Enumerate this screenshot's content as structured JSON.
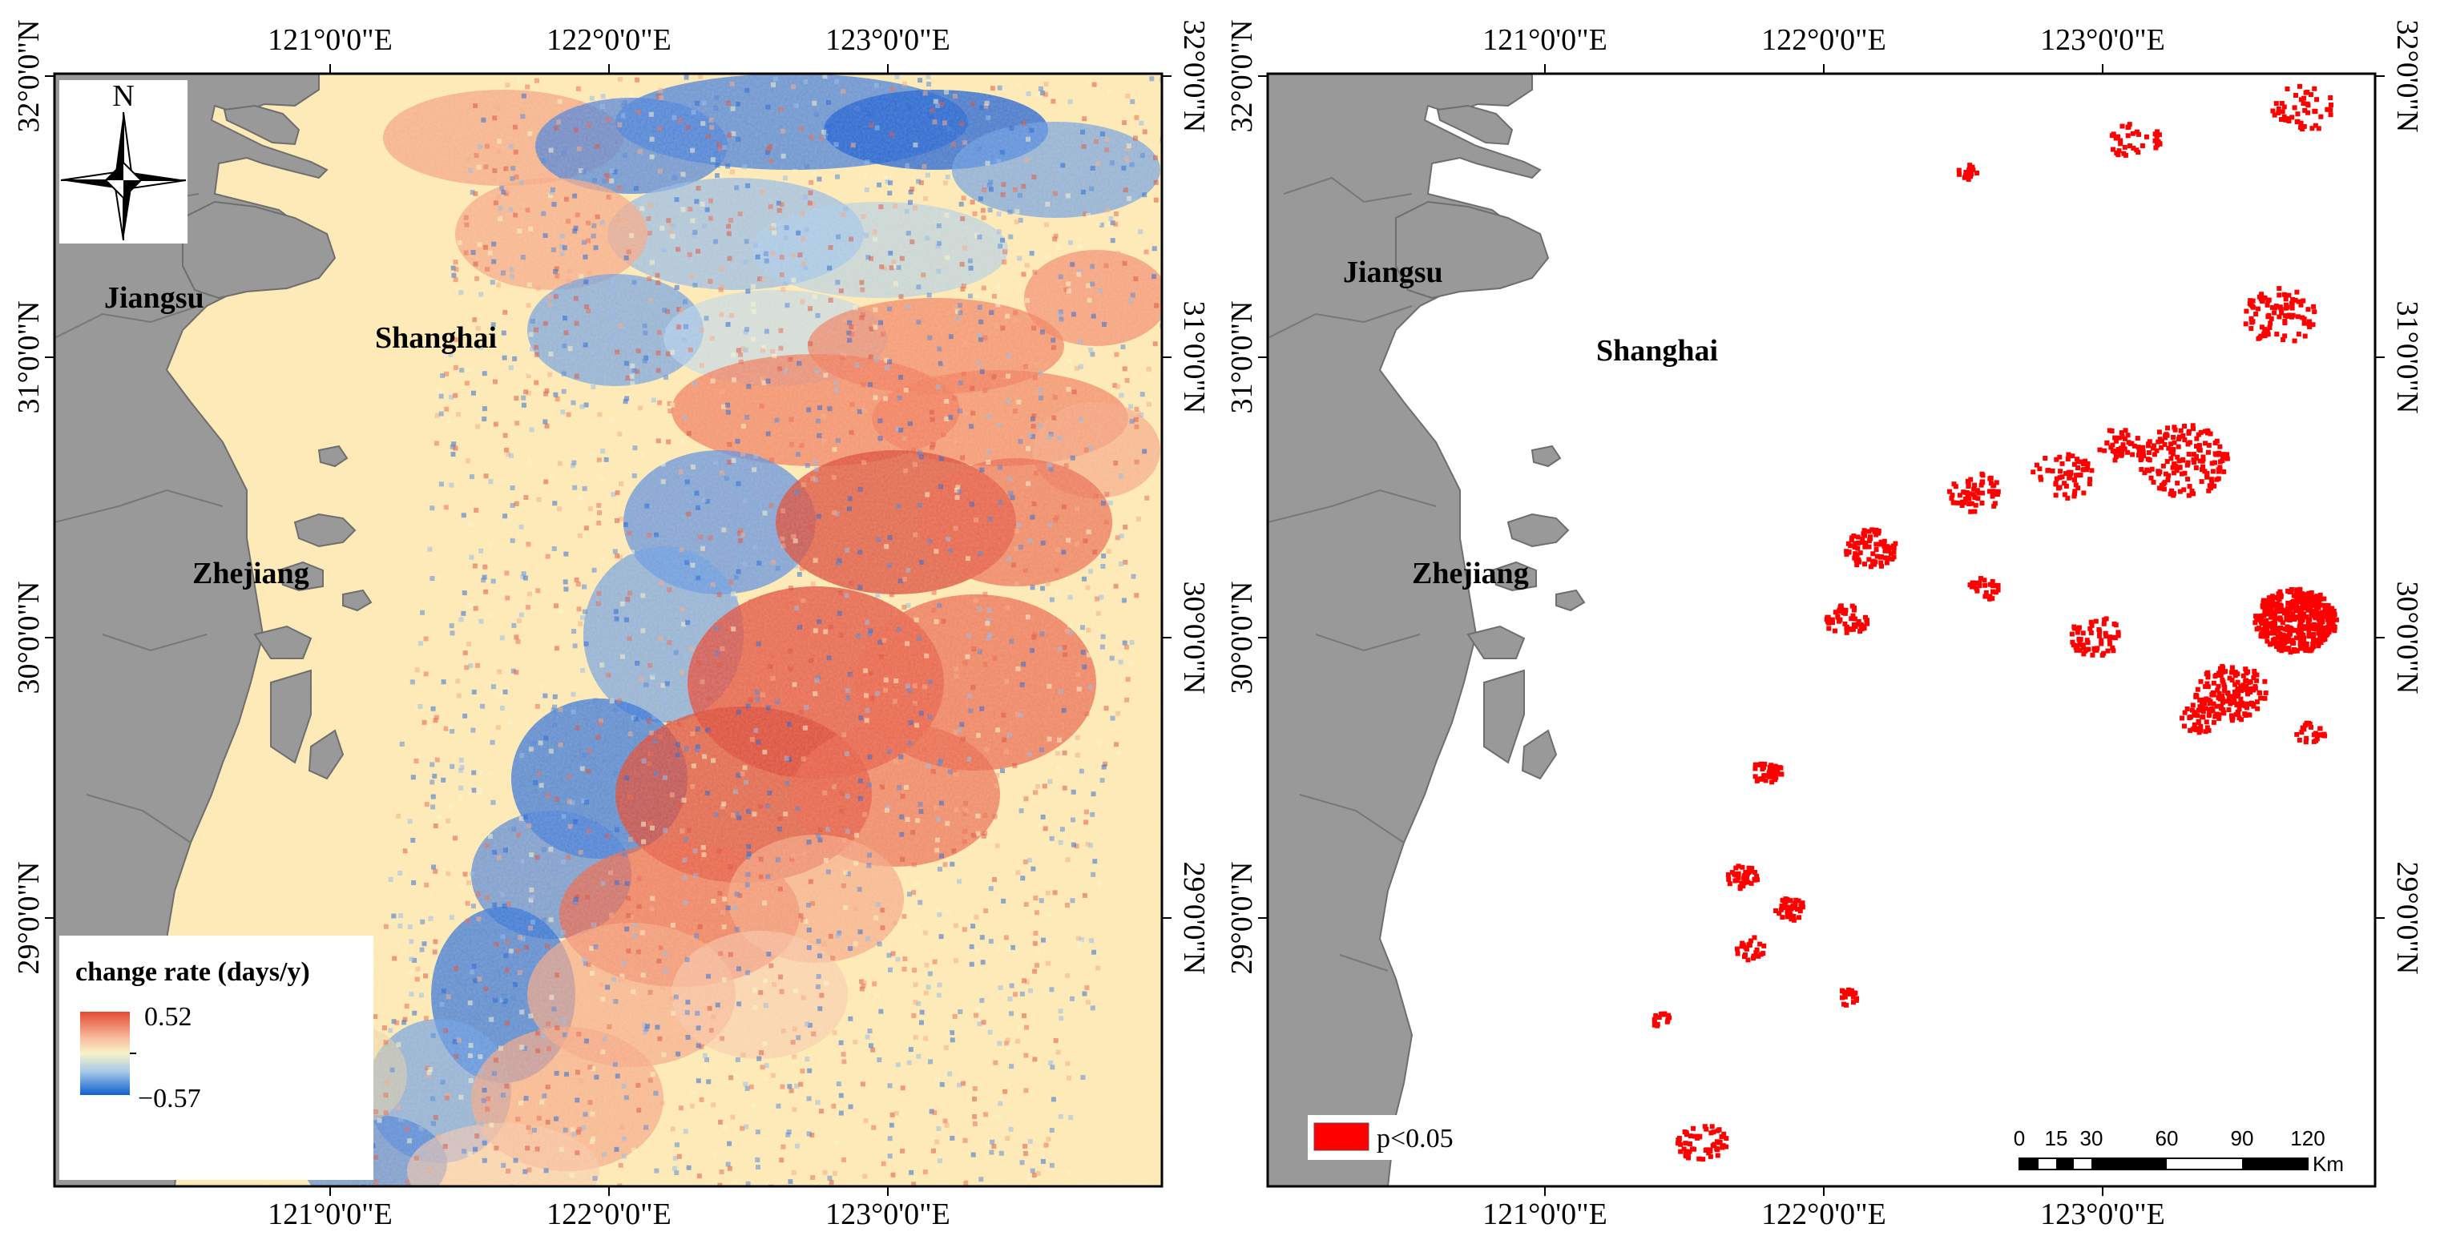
{
  "left_map": {
    "top_ticks": [
      "121°0'0\"E",
      "122°0'0\"E",
      "123°0'0\"E"
    ],
    "bottom_ticks": [
      "121°0'0\"E",
      "122°0'0\"E",
      "123°0'0\"E"
    ],
    "left_ticks": [
      "32°0'0\"N",
      "31°0'0\"N",
      "30°0'0\"N",
      "29°0'0\"N"
    ],
    "right_ticks": [
      "32°0'0\"N",
      "31°0'0\"N",
      "30°0'0\"N",
      "29°0'0\"N"
    ],
    "labels": {
      "jiangsu": "Jiangsu",
      "shanghai": "Shanghai",
      "zhejiang": "Zhejiang"
    },
    "north_arrow": {
      "letter": "N",
      "icon": "north-arrow-icon"
    },
    "legend": {
      "title": "change rate (days/y)",
      "max": "0.52",
      "min": "−0.57",
      "colors": [
        "#d7191c",
        "#f4a582",
        "#f7f3c8",
        "#92c5de",
        "#0571d0"
      ]
    }
  },
  "right_map": {
    "top_ticks": [
      "121°0'0\"E",
      "122°0'0\"E",
      "123°0'0\"E"
    ],
    "bottom_ticks": [
      "121°0'0\"E",
      "122°0'0\"E",
      "123°0'0\"E"
    ],
    "left_ticks": [
      "32°0'0\"N",
      "31°0'0\"N",
      "30°0'0\"N",
      "29°0'0\"N"
    ],
    "right_ticks": [
      "32°0'0\"N",
      "31°0'0\"N",
      "30°0'0\"N",
      "29°0'0\"N"
    ],
    "labels": {
      "jiangsu": "Jiangsu",
      "shanghai": "Shanghai",
      "zhejiang": "Zhejiang"
    },
    "legend": {
      "label": "p<0.05",
      "color": "#ff0000"
    },
    "scale_bar": {
      "ticks": [
        "0",
        "15",
        "30",
        "60",
        "90",
        "120"
      ],
      "unit": "Km"
    }
  },
  "colors": {
    "land": "#999999",
    "sea_left": "#fde8b0",
    "sea_right": "#ffffff",
    "significant": "#ff0000"
  }
}
